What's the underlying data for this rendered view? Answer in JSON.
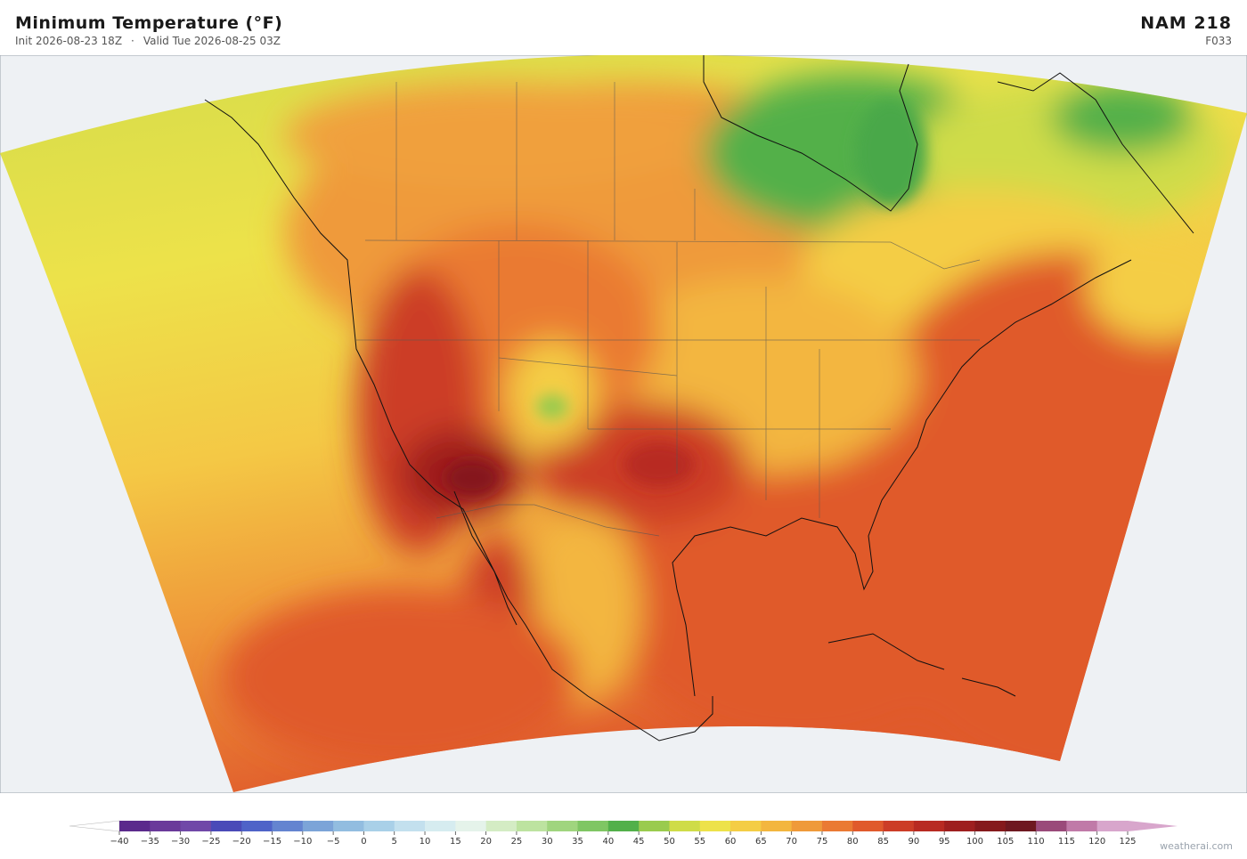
{
  "header": {
    "title": "Minimum Temperature  (°F)",
    "init": "Init 2026-08-23 18Z",
    "separator": "·",
    "valid": "Valid Tue 2026-08-25 03Z",
    "model": "NAM  218",
    "forecast_hour": "F033"
  },
  "colorbar": {
    "ticks": [
      {
        "value": -40,
        "label": "−40"
      },
      {
        "value": -35,
        "label": "−35"
      },
      {
        "value": -30,
        "label": "−30"
      },
      {
        "value": -25,
        "label": "−25"
      },
      {
        "value": -20,
        "label": "−20"
      },
      {
        "value": -15,
        "label": "−15"
      },
      {
        "value": -10,
        "label": "−10"
      },
      {
        "value": -5,
        "label": "−5"
      },
      0,
      5,
      10,
      15,
      20,
      25,
      30,
      35,
      40,
      45,
      50,
      55,
      60,
      65,
      70,
      75,
      80,
      85,
      90,
      95,
      100,
      105,
      110,
      115,
      120,
      125
    ],
    "colors": [
      "#5b2a8c",
      "#6a3a9a",
      "#7048a8",
      "#4a4ab8",
      "#4f63c8",
      "#6484d0",
      "#7ca4d8",
      "#92bde0",
      "#a9d0e8",
      "#c3e0ee",
      "#d6ecf0",
      "#e5f3ea",
      "#d4ecc4",
      "#bde3a0",
      "#a0d57e",
      "#7fc663",
      "#52b04a",
      "#9acb4e",
      "#cfdc48",
      "#ede24a",
      "#f4cd45",
      "#f3b63f",
      "#ef9a3a",
      "#ea7a33",
      "#e05a2c",
      "#cc3d27",
      "#b82a22",
      "#9e1f1f",
      "#85191c",
      "#6e1820",
      "#9a4a7a",
      "#c07aa8",
      "#d8a6cc"
    ],
    "under_color": "#ffffff",
    "over_color": "#d8a6cc"
  },
  "watermark": "weatherai.com"
}
